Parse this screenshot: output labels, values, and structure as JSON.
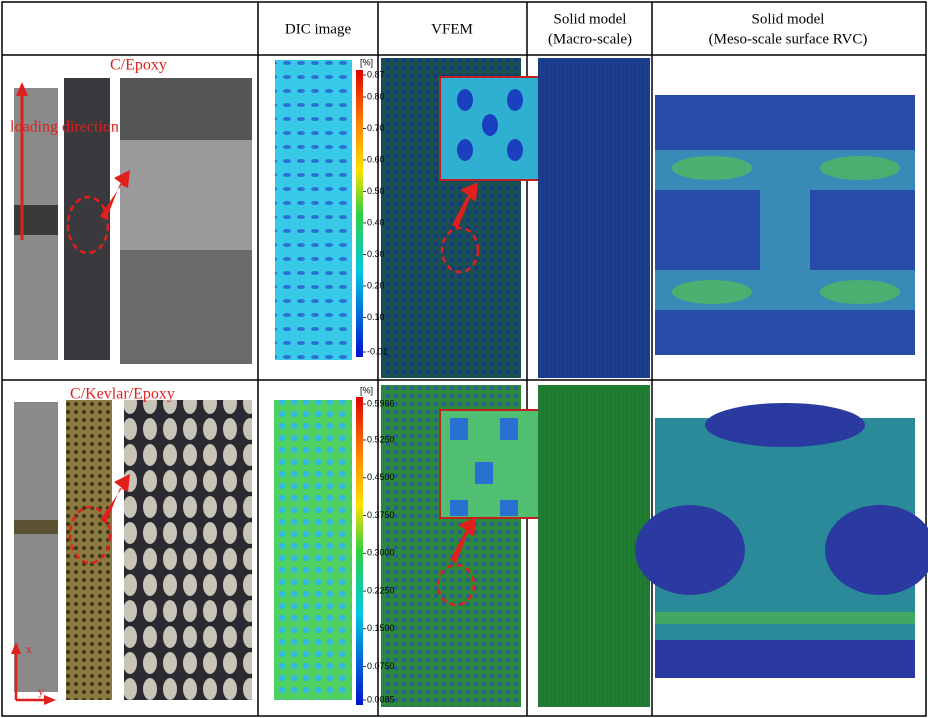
{
  "header": {
    "columns": [
      {
        "lines": [
          "DIC image"
        ]
      },
      {
        "lines": [
          "VFEM"
        ]
      },
      {
        "lines": [
          "Solid model",
          "(Macro-scale)"
        ]
      },
      {
        "lines": [
          "Solid model",
          "(Meso-scale surface RVC)"
        ]
      }
    ]
  },
  "rows": [
    {
      "label": "C/Epoxy",
      "annotation": "loading direction",
      "colorbar": {
        "unit": "[%]",
        "ticks": [
          "0.87",
          "0.80",
          "0.70",
          "0.60",
          "0.50",
          "0.40",
          "0.30",
          "0.20",
          "0.10",
          "-0.01"
        ]
      }
    },
    {
      "label": "C/Kevlar/Epoxy",
      "axes": [
        "x",
        "y"
      ],
      "colorbar": {
        "unit": "[%]",
        "ticks": [
          "0.5966",
          "0.5250",
          "0.4500",
          "0.3750",
          "0.3000",
          "0.2250",
          "0.1500",
          "0.0750",
          "0.0085"
        ]
      }
    }
  ]
}
